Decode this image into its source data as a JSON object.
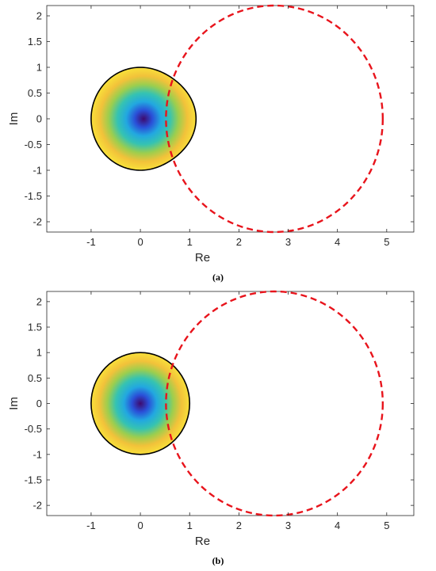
{
  "chart_data": [
    {
      "type": "scatter",
      "panel_label": "a",
      "xlabel": "Re",
      "ylabel": "Im",
      "xlim": [
        -1.9,
        5.55
      ],
      "ylim": [
        -2.2,
        2.2
      ],
      "xticks": [
        "-1",
        "0",
        "1",
        "2",
        "3",
        "4",
        "5"
      ],
      "yticks": [
        "-2",
        "-1.5",
        "-1",
        "-0.5",
        "0",
        "0.5",
        "1",
        "1.5",
        "2"
      ],
      "grid": false,
      "boundary_circle": {
        "center": [
          2.72,
          0
        ],
        "radius": 2.2,
        "color": "#e8141c",
        "style": "dashed"
      },
      "stability_region": {
        "center": [
          0,
          0
        ],
        "radius": 1.0,
        "shape": "bulged",
        "edge_color": "#000000",
        "fill": "radial-gradient",
        "gradient_colors": [
          "#3e0a6e",
          "#2a4fd8",
          "#22a8e0",
          "#35c3b2",
          "#9cce4e",
          "#f2c23a",
          "#f8e03a"
        ]
      }
    },
    {
      "type": "scatter",
      "panel_label": "b",
      "xlabel": "Re",
      "ylabel": "Im",
      "xlim": [
        -1.9,
        5.55
      ],
      "ylim": [
        -2.2,
        2.2
      ],
      "xticks": [
        "-1",
        "0",
        "1",
        "2",
        "3",
        "4",
        "5"
      ],
      "yticks": [
        "-2",
        "-1.5",
        "-1",
        "-0.5",
        "0",
        "0.5",
        "1",
        "1.5",
        "2"
      ],
      "grid": false,
      "boundary_circle": {
        "center": [
          2.72,
          0
        ],
        "radius": 2.2,
        "color": "#e8141c",
        "style": "dashed"
      },
      "stability_region": {
        "center": [
          0,
          0
        ],
        "radius": 1.0,
        "shape": "circle",
        "edge_color": "#000000",
        "fill": "radial-gradient",
        "gradient_colors": [
          "#3e0a6e",
          "#2a4fd8",
          "#22a8e0",
          "#35c3b2",
          "#9cce4e",
          "#f2c23a",
          "#f8e03a"
        ]
      }
    }
  ],
  "captions": [
    {
      "label": "(a)"
    },
    {
      "label": "(b)"
    }
  ]
}
